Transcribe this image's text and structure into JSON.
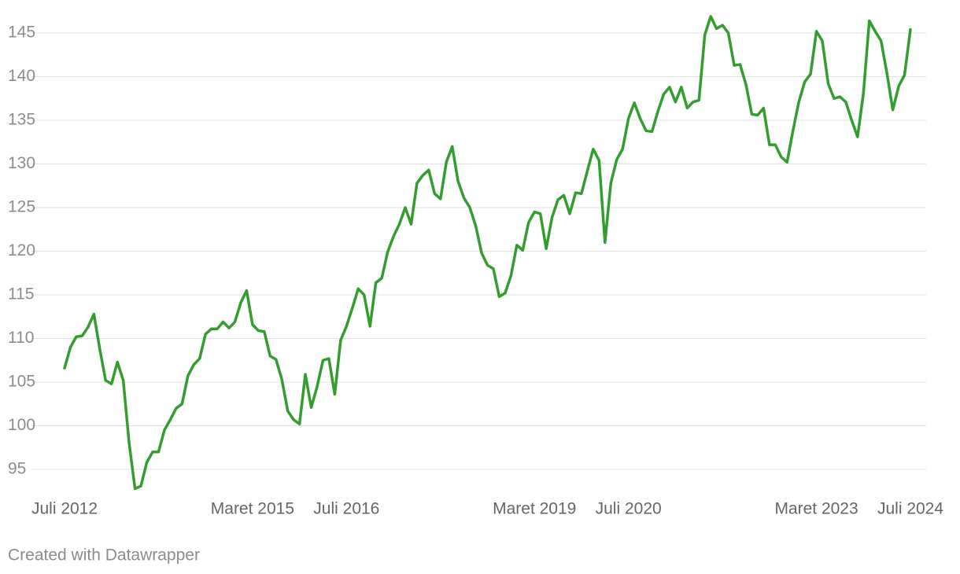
{
  "chart_data": {
    "type": "line",
    "categories": [
      "Juli 2012",
      null,
      null,
      null,
      null,
      null,
      null,
      null,
      null,
      null,
      null,
      null,
      null,
      null,
      null,
      null,
      null,
      null,
      null,
      null,
      null,
      null,
      null,
      null,
      null,
      null,
      null,
      null,
      null,
      null,
      null,
      null,
      "Maret 2015",
      null,
      null,
      null,
      null,
      null,
      null,
      null,
      null,
      null,
      null,
      null,
      null,
      null,
      null,
      null,
      "Juli 2016",
      null,
      null,
      null,
      null,
      null,
      null,
      null,
      null,
      null,
      null,
      null,
      null,
      null,
      null,
      null,
      null,
      null,
      null,
      null,
      null,
      null,
      null,
      null,
      null,
      null,
      null,
      null,
      null,
      null,
      null,
      null,
      "Maret 2019",
      null,
      null,
      null,
      null,
      null,
      null,
      null,
      null,
      null,
      null,
      null,
      null,
      null,
      null,
      null,
      "Juli 2020",
      null,
      null,
      null,
      null,
      null,
      null,
      null,
      null,
      null,
      null,
      null,
      null,
      null,
      null,
      null,
      null,
      null,
      null,
      null,
      null,
      null,
      null,
      null,
      null,
      null,
      null,
      null,
      null,
      null,
      null,
      null,
      "Maret 2023",
      null,
      null,
      null,
      null,
      null,
      null,
      null,
      null,
      null,
      null,
      null,
      null,
      null,
      null,
      null,
      "Juli 2024"
    ],
    "series": [
      {
        "color": "#339e2f",
        "values": [
          106.6,
          109,
          110.2,
          110.3,
          111.3,
          112.8,
          108.8,
          105.2,
          104.8,
          107.3,
          105.2,
          98,
          92.8,
          93.1,
          95.8,
          97,
          97,
          99.5,
          100.7,
          102,
          102.5,
          105.7,
          107,
          107.7,
          110.5,
          111.1,
          111.1,
          111.9,
          111.2,
          111.9,
          114.1,
          115.5,
          111.6,
          110.9,
          110.8,
          108,
          107.6,
          105.3,
          101.7,
          100.7,
          100.2,
          105.9,
          102.1,
          104.5,
          107.5,
          107.7,
          103.6,
          109.8,
          111.4,
          113.5,
          115.7,
          115,
          111.4,
          116.4,
          116.9,
          119.9,
          121.7,
          123.1,
          125,
          123.1,
          127.8,
          128.7,
          129.3,
          126.6,
          126,
          130.2,
          132,
          128,
          126.1,
          125,
          122.9,
          119.8,
          118.4,
          118,
          114.8,
          115.2,
          117.2,
          120.7,
          120.1,
          123.3,
          124.5,
          124.3,
          120.3,
          123.9,
          125.9,
          126.4,
          124.3,
          126.7,
          126.6,
          129.2,
          131.7,
          130.4,
          121,
          127.8,
          130.5,
          131.7,
          135.2,
          137,
          135.2,
          133.8,
          133.7,
          136,
          138,
          138.8,
          137.1,
          138.8,
          136.4,
          137.1,
          137.3,
          144.8,
          146.9,
          145.5,
          145.9,
          145,
          141.3,
          141.4,
          139.1,
          135.7,
          135.6,
          136.4,
          132.2,
          132.2,
          130.8,
          130.2,
          133.8,
          137.1,
          139.4,
          140.3,
          145.2,
          144.1,
          139.2,
          137.5,
          137.7,
          137.1,
          135,
          133.1,
          138.1,
          146.4,
          145.2,
          144.1,
          140.4,
          136.2,
          138.9,
          140.2,
          145.4
        ]
      }
    ],
    "ylim": [
      92.5,
      147.5
    ],
    "yticks": [
      95,
      100,
      105,
      110,
      115,
      120,
      125,
      130,
      135,
      140,
      145
    ],
    "grid": true
  },
  "footer": "Created with Datawrapper"
}
